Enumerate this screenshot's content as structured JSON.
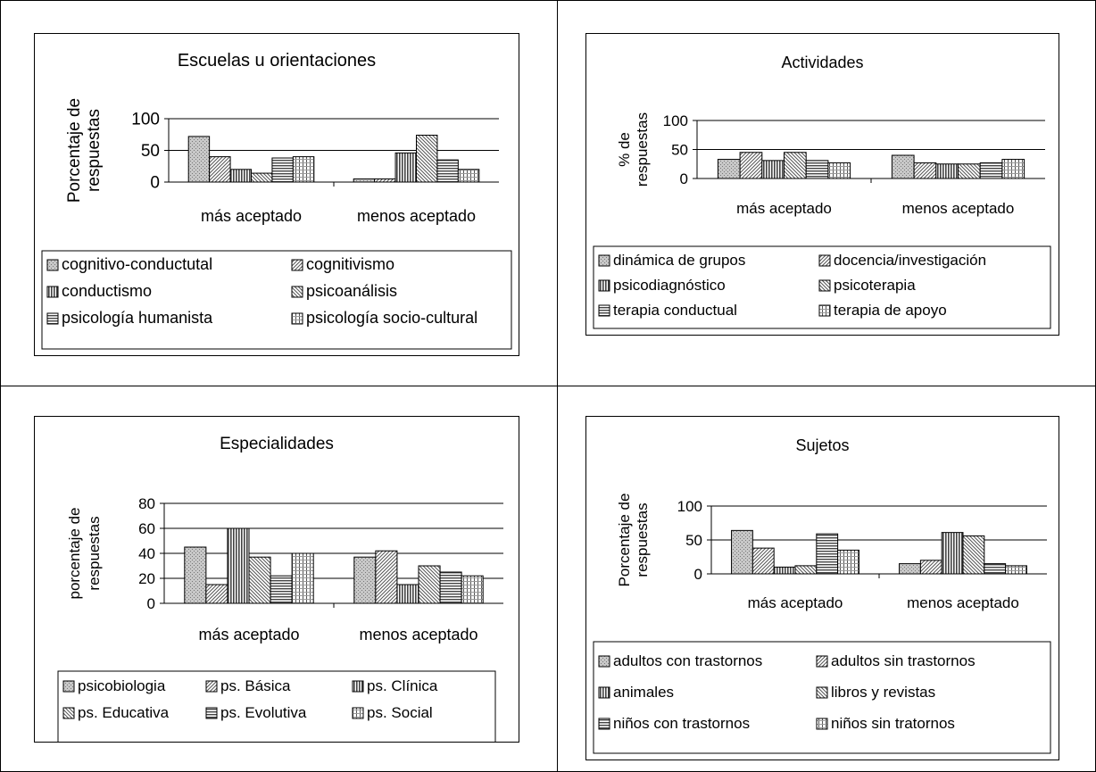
{
  "chart_data": [
    {
      "type": "bar",
      "title": "Escuelas u orientaciones",
      "ylabel_lines": [
        "Porcentaje de",
        "respuestas"
      ],
      "xlabel": "",
      "ylim": [
        0,
        100
      ],
      "yticks": [
        0,
        50,
        100
      ],
      "grid": true,
      "legend_position": "bottom",
      "categories": [
        "más aceptado",
        "menos aceptado"
      ],
      "series": [
        {
          "name": "cognitivo-conductutal",
          "pattern": "dots",
          "values": [
            72,
            5
          ]
        },
        {
          "name": "cognitivismo",
          "pattern": "diag-right",
          "values": [
            40,
            5
          ]
        },
        {
          "name": "conductismo",
          "pattern": "vertical",
          "values": [
            20,
            46
          ]
        },
        {
          "name": "psicoanálisis",
          "pattern": "diag-left",
          "values": [
            14,
            74
          ]
        },
        {
          "name": "psicología humanista",
          "pattern": "horizontal",
          "values": [
            38,
            35
          ]
        },
        {
          "name": "psicología socio-cultural",
          "pattern": "vgrid",
          "values": [
            40,
            20
          ]
        }
      ]
    },
    {
      "type": "bar",
      "title": "Actividades",
      "ylabel_lines": [
        "% de",
        "respuestas"
      ],
      "xlabel": "",
      "ylim": [
        0,
        100
      ],
      "yticks": [
        0,
        50,
        100
      ],
      "grid": true,
      "legend_position": "bottom",
      "categories": [
        "más aceptado",
        "menos aceptado"
      ],
      "series": [
        {
          "name": "dinámica de grupos",
          "pattern": "dots",
          "values": [
            33,
            40
          ]
        },
        {
          "name": "docencia/investigación",
          "pattern": "diag-right",
          "values": [
            45,
            27
          ]
        },
        {
          "name": "psicodiagnóstico",
          "pattern": "vertical",
          "values": [
            31,
            25
          ]
        },
        {
          "name": "psicoterapia",
          "pattern": "diag-left",
          "values": [
            45,
            25
          ]
        },
        {
          "name": "terapia conductual",
          "pattern": "horizontal",
          "values": [
            31,
            27
          ]
        },
        {
          "name": "terapia de apoyo",
          "pattern": "vgrid",
          "values": [
            27,
            33
          ]
        }
      ]
    },
    {
      "type": "bar",
      "title": "Especialidades",
      "ylabel_lines": [
        "porcentaje de",
        "respuestas"
      ],
      "xlabel": "",
      "ylim": [
        0,
        80
      ],
      "yticks": [
        0,
        20,
        40,
        60,
        80
      ],
      "grid": true,
      "legend_position": "bottom",
      "categories": [
        "más aceptado",
        "menos aceptado"
      ],
      "series": [
        {
          "name": "psicobiologia",
          "pattern": "dots",
          "values": [
            45,
            37
          ]
        },
        {
          "name": "ps. Básica",
          "pattern": "diag-right",
          "values": [
            15,
            42
          ]
        },
        {
          "name": "ps. Clínica",
          "pattern": "vertical",
          "values": [
            60,
            15
          ]
        },
        {
          "name": "ps. Educativa",
          "pattern": "diag-left",
          "values": [
            37,
            30
          ]
        },
        {
          "name": "ps. Evolutiva",
          "pattern": "horizontal",
          "values": [
            22,
            25
          ]
        },
        {
          "name": "ps. Social",
          "pattern": "vgrid",
          "values": [
            40,
            22
          ]
        }
      ]
    },
    {
      "type": "bar",
      "title": "Sujetos",
      "ylabel_lines": [
        "Porcentaje de",
        "respuestas"
      ],
      "xlabel": "",
      "ylim": [
        0,
        100
      ],
      "yticks": [
        0,
        50,
        100
      ],
      "grid": true,
      "legend_position": "bottom",
      "categories": [
        "más aceptado",
        "menos aceptado"
      ],
      "series": [
        {
          "name": "adultos con trastornos",
          "pattern": "dots",
          "values": [
            64,
            15
          ]
        },
        {
          "name": "adultos sin trastornos",
          "pattern": "diag-right",
          "values": [
            38,
            20
          ]
        },
        {
          "name": "animales",
          "pattern": "vertical",
          "values": [
            10,
            61
          ]
        },
        {
          "name": "libros y revistas",
          "pattern": "diag-left",
          "values": [
            12,
            56
          ]
        },
        {
          "name": "niños con trastornos",
          "pattern": "horizontal",
          "values": [
            59,
            15
          ]
        },
        {
          "name": "niños sin tratornos",
          "pattern": "vgrid",
          "values": [
            35,
            12
          ]
        }
      ]
    }
  ]
}
